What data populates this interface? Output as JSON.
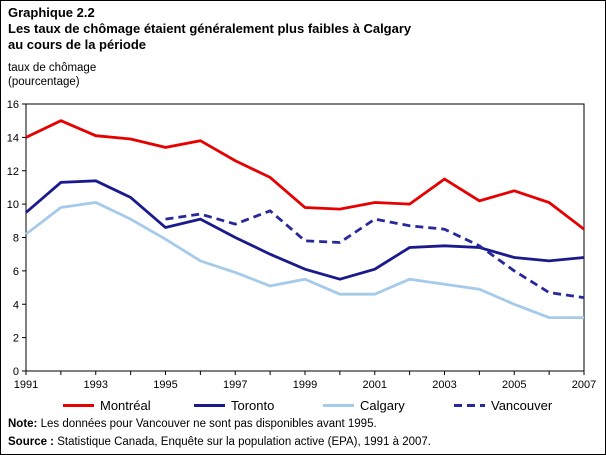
{
  "header": {
    "figure_number": "Graphique 2.2",
    "title_line1": "Les taux de chômage étaient généralement plus faibles à Calgary",
    "title_line2": "au cours de la période",
    "unit_line1": "taux de chômage",
    "unit_line2": "(pourcentage)"
  },
  "chart_data": {
    "type": "line",
    "x": [
      1991,
      1992,
      1993,
      1994,
      1995,
      1996,
      1997,
      1998,
      1999,
      2000,
      2001,
      2002,
      2003,
      2004,
      2005,
      2006,
      2007
    ],
    "x_tick_label_step": 2,
    "ylim": [
      0,
      16
    ],
    "y_tick_step": 2,
    "grid": false,
    "legend_position": "bottom",
    "series": [
      {
        "id": "montreal",
        "name": "Montréal",
        "color": "#e60000",
        "dash": null,
        "values": [
          14.0,
          15.0,
          14.1,
          13.9,
          13.4,
          13.8,
          12.6,
          11.6,
          9.8,
          9.7,
          10.1,
          10.0,
          11.5,
          10.2,
          10.8,
          10.1,
          8.5
        ]
      },
      {
        "id": "toronto",
        "name": "Toronto",
        "color": "#1a1a8c",
        "dash": null,
        "values": [
          9.5,
          11.3,
          11.4,
          10.4,
          8.6,
          9.1,
          8.0,
          7.0,
          6.1,
          5.5,
          6.1,
          7.4,
          7.5,
          7.4,
          6.8,
          6.6,
          6.8
        ]
      },
      {
        "id": "calgary",
        "name": "Calgary",
        "color": "#a6cbea",
        "dash": null,
        "values": [
          8.2,
          9.8,
          10.1,
          9.1,
          7.9,
          6.6,
          5.9,
          5.1,
          5.5,
          4.6,
          4.6,
          5.5,
          5.2,
          4.9,
          4.0,
          3.2,
          3.2
        ]
      },
      {
        "id": "vancouver",
        "name": "Vancouver",
        "color": "#28289a",
        "dash": "8 5",
        "values": [
          null,
          null,
          null,
          null,
          9.1,
          9.4,
          8.8,
          9.6,
          7.8,
          7.7,
          9.1,
          8.7,
          8.5,
          7.5,
          6.0,
          4.7,
          4.4
        ]
      }
    ]
  },
  "footer": {
    "note_prefix": "Note:",
    "note_text": " Les données pour Vancouver ne sont pas disponibles avant 1995.",
    "source_prefix": "Source :",
    "source_text": " Statistique Canada, Enquête sur la population active (EPA), 1991 à 2007."
  }
}
